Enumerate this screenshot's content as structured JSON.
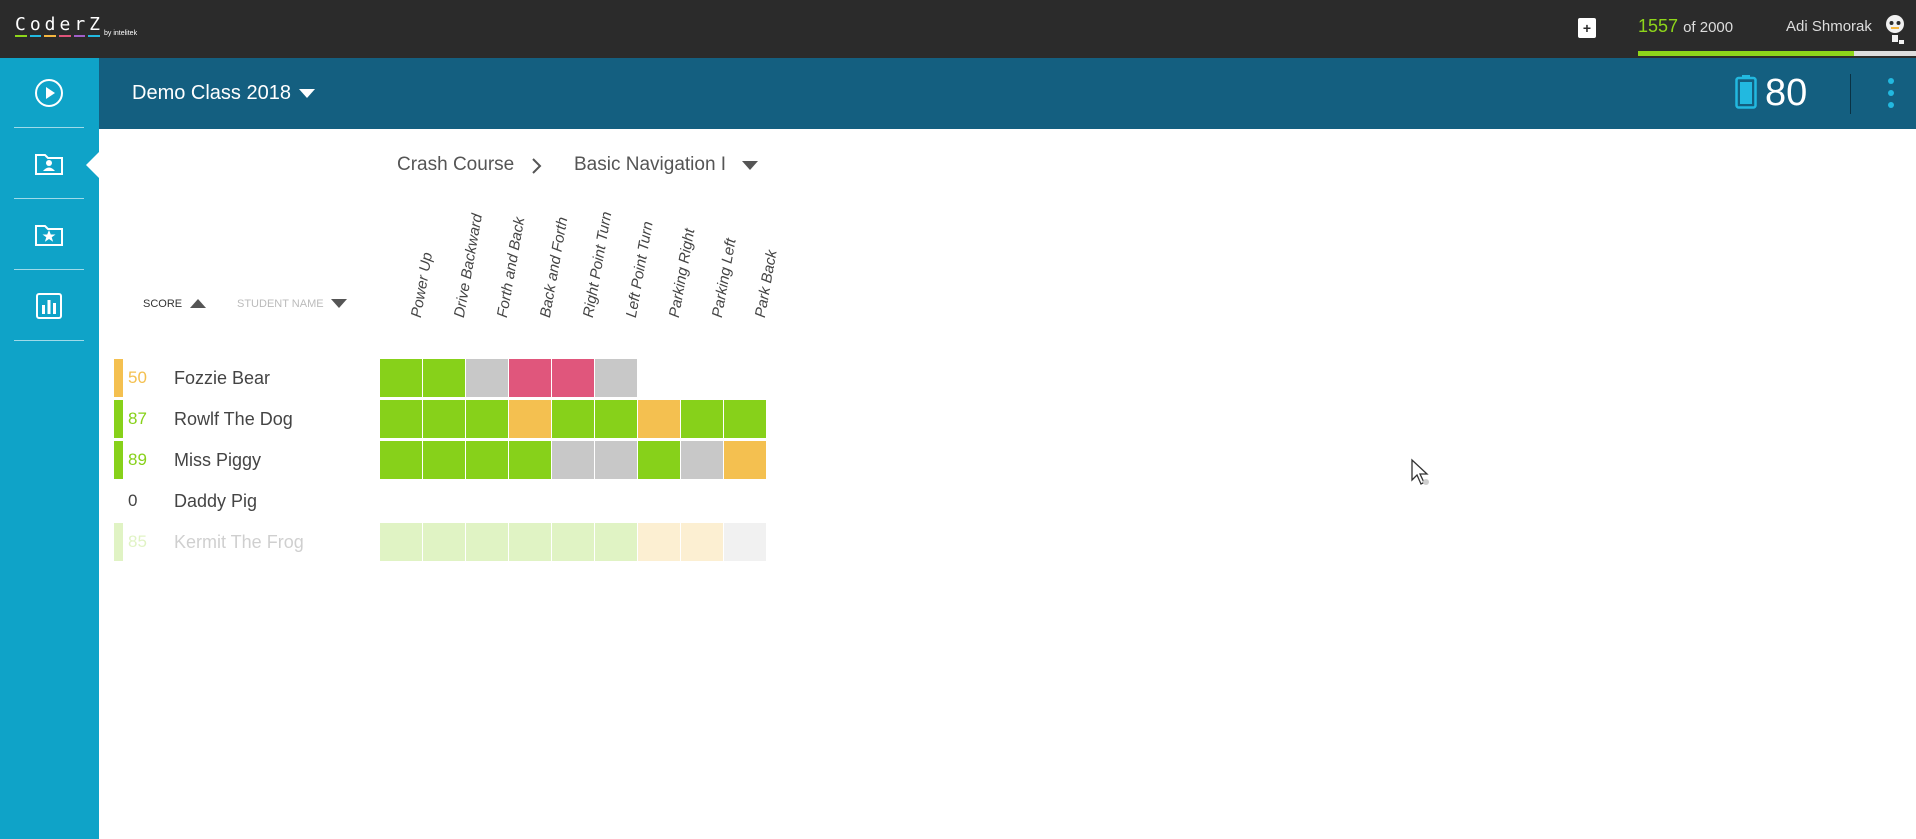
{
  "topbar": {
    "logo_text": "CoderZ",
    "logo_by": "by intelitek",
    "logo_colors": [
      "#8ed61a",
      "#22b9e0",
      "#f4b63f",
      "#e0547a",
      "#a05fc8",
      "#22b9e0"
    ],
    "bonus_icon": "plus-badge-icon",
    "points_current": "1557",
    "points_total": "of 2000",
    "points_fraction": 0.7785,
    "user_name": "Adi Shmorak",
    "avatar_icon": "robot-avatar-icon"
  },
  "sidebar": {
    "items": [
      {
        "name": "play-icon",
        "label": "Play"
      },
      {
        "name": "class-folder-icon",
        "label": "Classes",
        "active": true
      },
      {
        "name": "star-folder-icon",
        "label": "Favorites"
      },
      {
        "name": "chart-icon",
        "label": "Reports"
      }
    ]
  },
  "header": {
    "class_title": "Demo Class 2018",
    "energy_icon": "battery-icon",
    "energy_value": "80"
  },
  "breadcrumb": {
    "course": "Crash Course",
    "mission": "Basic Navigation I"
  },
  "sort": {
    "score_label": "SCORE",
    "name_label": "STUDENT NAME"
  },
  "columns": [
    "Power Up",
    "Drive Backward",
    "Forth and Back",
    "Back and Forth",
    "Right Point Turn",
    "Left Point Turn",
    "Parking Right",
    "Parking Left",
    "Park Back"
  ],
  "colors": {
    "green": "#87d11a",
    "orange": "#f4c050",
    "pink": "#e0567c",
    "gray": "#c8c8c8",
    "accent_sidebar": "#0fa3c8",
    "header_bg": "#145f80"
  },
  "students": [
    {
      "score": "50",
      "name": "Fozzie Bear",
      "score_color": "#f4c050",
      "bar_color": "#f4c050",
      "faded": false,
      "cells": [
        "green",
        "green",
        "gray",
        "pink",
        "pink",
        "gray",
        "none",
        "none",
        "none"
      ]
    },
    {
      "score": "87",
      "name": "Rowlf The Dog",
      "score_color": "#87d11a",
      "bar_color": "#87d11a",
      "faded": false,
      "cells": [
        "green",
        "green",
        "green",
        "orange",
        "green",
        "green",
        "orange",
        "green",
        "green"
      ]
    },
    {
      "score": "89",
      "name": "Miss Piggy",
      "score_color": "#87d11a",
      "bar_color": "#87d11a",
      "faded": false,
      "cells": [
        "green",
        "green",
        "green",
        "green",
        "gray",
        "gray",
        "green",
        "gray",
        "orange"
      ]
    },
    {
      "score": "0",
      "name": "Daddy Pig",
      "score_color": "#444444",
      "bar_color": "none",
      "faded": false,
      "cells": [
        "none",
        "none",
        "none",
        "none",
        "none",
        "none",
        "none",
        "none",
        "none"
      ]
    },
    {
      "score": "85",
      "name": "Kermit The Frog",
      "score_color": "#87d11a",
      "bar_color": "#87d11a",
      "faded": true,
      "cells": [
        "green",
        "green",
        "green",
        "green",
        "green",
        "green",
        "orange",
        "orange",
        "gray"
      ]
    }
  ]
}
